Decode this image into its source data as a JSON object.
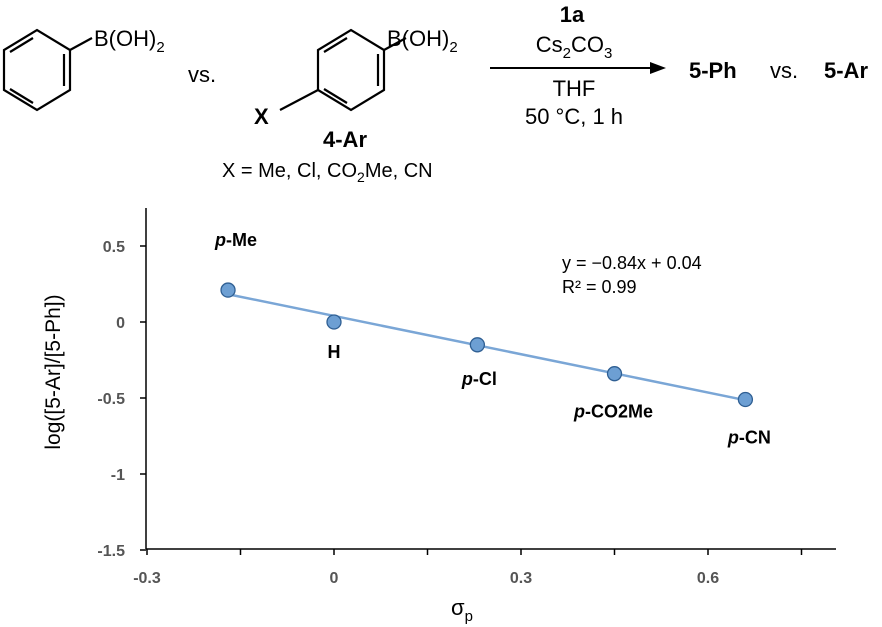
{
  "scheme": {
    "reagent_left": "B(OH)",
    "reagent_left_sub": "2",
    "vs_1": "vs.",
    "reagent_right": "B(OH)",
    "reagent_right_sub": "2",
    "x_label": "X",
    "compound_label": "4-Ar",
    "substituents_pre": "X = Me, Cl, CO",
    "substituents_sub": "2",
    "substituents_post": "Me, CN",
    "above_arrow_1": "1a",
    "above_arrow_2a": "Cs",
    "above_arrow_2b": "2",
    "above_arrow_2c": "CO",
    "above_arrow_2d": "3",
    "below_arrow_1": "THF",
    "below_arrow_2": "50 °C, 1 h",
    "product_1": "5-Ph",
    "vs_2": "vs.",
    "product_2": "5-Ar"
  },
  "chart_data": {
    "type": "scatter",
    "title": "",
    "xlabel_main": "σ",
    "xlabel_sub": "p",
    "ylabel": "log([5-Ar]/[5-Ph])",
    "xlim": [
      -0.3,
      0.75
    ],
    "ylim": [
      -1.5,
      0.75
    ],
    "x_ticks": [
      -0.3,
      0,
      0.3,
      0.6
    ],
    "x_tick_labels": [
      "-0.3",
      "0",
      "0.3",
      "0.6"
    ],
    "y_ticks": [
      0.5,
      0,
      -0.5,
      -1,
      -1.5
    ],
    "y_tick_labels": [
      "0.5",
      "0",
      "-0.5",
      "-1",
      "-1.5"
    ],
    "points": [
      {
        "label_italic": "p",
        "label_rest": "-Me",
        "x": -0.17,
        "y": 0.21
      },
      {
        "label_italic": "",
        "label_rest": "H",
        "x": 0.0,
        "y": 0.0
      },
      {
        "label_italic": "p",
        "label_rest": "-Cl",
        "x": 0.23,
        "y": -0.15
      },
      {
        "label_italic": "p",
        "label_rest": "-CO2Me",
        "x": 0.45,
        "y": -0.34
      },
      {
        "label_italic": "p",
        "label_rest": "-CN",
        "x": 0.66,
        "y": -0.51
      }
    ],
    "trendline": {
      "slope": -0.84,
      "intercept": 0.04,
      "x_range": [
        -0.17,
        0.66
      ]
    },
    "equation": "y = −0.84x + 0.04",
    "r_squared": "R² = 0.99",
    "colors": {
      "marker_fill": "#6d9fd3",
      "marker_stroke": "#2f5f93",
      "trendline": "#7aa6d6",
      "axis": "#000000"
    }
  }
}
